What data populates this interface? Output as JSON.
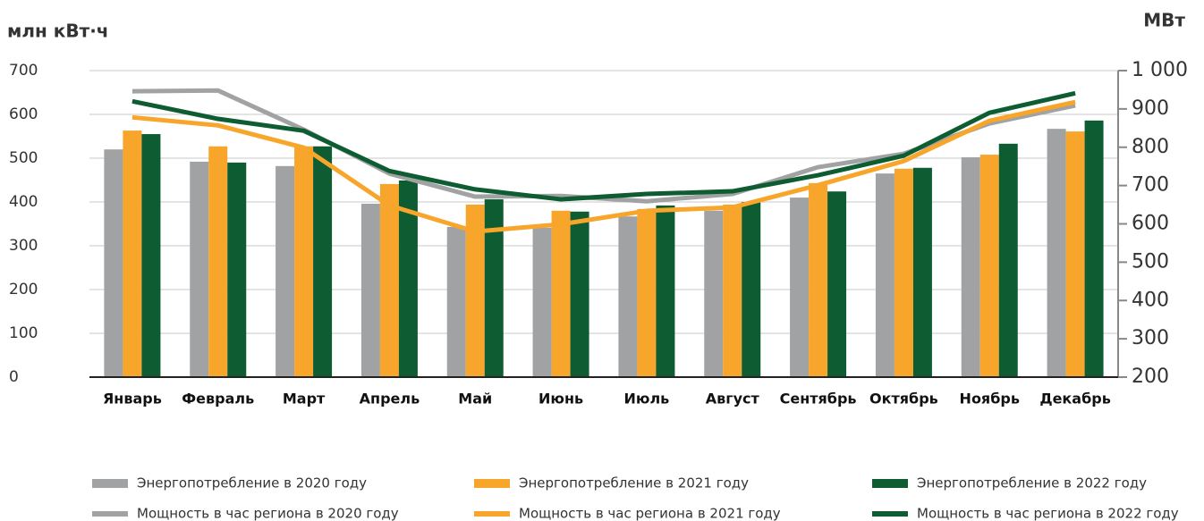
{
  "chart_data": {
    "type": "bar",
    "y_label": "млн кВт·ч",
    "y2_label": "МВт",
    "categories": [
      "Январь",
      "Февраль",
      "Март",
      "Апрель",
      "Май",
      "Июнь",
      "Июль",
      "Август",
      "Сентябрь",
      "Октябрь",
      "Ноябрь",
      "Декабрь"
    ],
    "series": [
      {
        "name": "Энергопотребление в 2020 году",
        "type": "bar",
        "color": "#a0a2a4",
        "values": [
          520,
          492,
          482,
          396,
          343,
          341,
          367,
          380,
          410,
          465,
          502,
          567
        ]
      },
      {
        "name": "Энергопотребление в 2021 году",
        "type": "bar",
        "color": "#f7a52b",
        "values": [
          563,
          527,
          527,
          441,
          394,
          380,
          384,
          394,
          443,
          476,
          508,
          561
        ]
      },
      {
        "name": "Энергопотребление в 2022 году",
        "type": "bar",
        "color": "#0e5c32",
        "values": [
          555,
          490,
          527,
          449,
          406,
          378,
          392,
          400,
          424,
          478,
          533,
          586
        ]
      },
      {
        "name": "Мощность в час региона в 2020 году",
        "type": "line",
        "axis": "y2",
        "color": "#a0a2a4",
        "values": [
          946,
          948,
          846,
          731,
          671,
          673,
          659,
          678,
          748,
          783,
          862,
          909
        ]
      },
      {
        "name": "Мощность в час региона в 2021 году",
        "type": "line",
        "axis": "y2",
        "color": "#f7a52b",
        "values": [
          878,
          857,
          799,
          648,
          580,
          599,
          634,
          643,
          701,
          764,
          869,
          918
        ]
      },
      {
        "name": "Мощность в час региона в 2022 году",
        "type": "line",
        "axis": "y2",
        "color": "#0e5c32",
        "values": [
          920,
          874,
          843,
          738,
          690,
          664,
          678,
          685,
          727,
          778,
          890,
          941
        ]
      }
    ],
    "ylim": [
      0,
      700
    ],
    "yticks": [
      0,
      100,
      200,
      300,
      400,
      500,
      600,
      700
    ],
    "y2lim": [
      200,
      1000
    ],
    "y2ticks": [
      200,
      300,
      400,
      500,
      600,
      700,
      800,
      900,
      {
        "value": 1000,
        "label": "1 000"
      }
    ],
    "grid": true
  }
}
